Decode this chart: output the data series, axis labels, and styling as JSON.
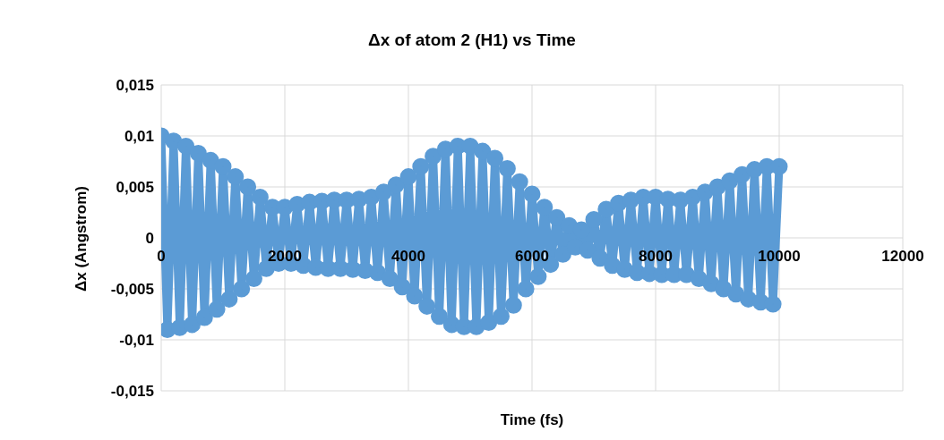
{
  "chart_data": {
    "type": "line",
    "title": "Δx of atom 2 (H1) vs Time",
    "xlabel": "Time (fs)",
    "ylabel": "Δx (Angstrom)",
    "marker": "circle",
    "grid": true,
    "x": [
      0,
      100,
      200,
      300,
      400,
      500,
      600,
      700,
      800,
      900,
      1000,
      1100,
      1200,
      1300,
      1400,
      1500,
      1600,
      1700,
      1800,
      1900,
      2000,
      2100,
      2200,
      2300,
      2400,
      2500,
      2600,
      2700,
      2800,
      2900,
      3000,
      3100,
      3200,
      3300,
      3400,
      3500,
      3600,
      3700,
      3800,
      3900,
      4000,
      4100,
      4200,
      4300,
      4400,
      4500,
      4600,
      4700,
      4800,
      4900,
      5000,
      5100,
      5200,
      5300,
      5400,
      5500,
      5600,
      5700,
      5800,
      5900,
      6000,
      6100,
      6200,
      6300,
      6400,
      6500,
      6600,
      6700,
      6800,
      6900,
      7000,
      7100,
      7200,
      7300,
      7400,
      7500,
      7600,
      7700,
      7800,
      7900,
      8000,
      8100,
      8200,
      8300,
      8400,
      8500,
      8600,
      8700,
      8800,
      8900,
      9000,
      9100,
      9200,
      9300,
      9400,
      9500,
      9600,
      9700,
      9800,
      9900,
      10000
    ],
    "series": [
      {
        "color": "#5b9bd5",
        "values": [
          0.01,
          -0.009,
          0.0095,
          -0.0088,
          0.009,
          -0.0085,
          0.0083,
          -0.0078,
          0.0076,
          -0.007,
          0.007,
          -0.006,
          0.006,
          -0.005,
          0.005,
          -0.004,
          0.004,
          -0.003,
          0.003,
          -0.0025,
          0.003,
          -0.0025,
          0.0033,
          -0.0027,
          0.0035,
          -0.0029,
          0.0036,
          -0.003,
          0.0037,
          -0.003,
          0.0037,
          -0.0031,
          0.0038,
          -0.0032,
          0.004,
          -0.0034,
          0.0045,
          -0.004,
          0.0052,
          -0.0048,
          0.006,
          -0.0057,
          0.007,
          -0.0067,
          0.008,
          -0.0077,
          0.0087,
          -0.0085,
          0.009,
          -0.0087,
          0.009,
          -0.0087,
          0.0085,
          -0.0083,
          0.0078,
          -0.0077,
          0.0068,
          -0.0066,
          0.0055,
          -0.005,
          0.0043,
          -0.0038,
          0.003,
          -0.0026,
          0.002,
          -0.0016,
          0.0012,
          -0.0009,
          0.0008,
          -0.0012,
          0.0018,
          -0.002,
          0.0028,
          -0.0027,
          0.0034,
          -0.0031,
          0.0037,
          -0.0034,
          0.004,
          -0.0035,
          0.004,
          -0.0036,
          0.0038,
          -0.0036,
          0.0037,
          -0.0036,
          0.004,
          -0.004,
          0.0045,
          -0.0045,
          0.005,
          -0.005,
          0.0056,
          -0.0055,
          0.0062,
          -0.006,
          0.0067,
          -0.0063,
          0.007,
          -0.0065,
          0.007
        ]
      }
    ],
    "xlim": [
      0,
      12000
    ],
    "xticks": [
      0,
      2000,
      4000,
      6000,
      8000,
      10000,
      12000
    ],
    "ylim": [
      -0.015,
      0.015
    ],
    "yticks": [
      {
        "value": -0.015,
        "label": "-0,015"
      },
      {
        "value": -0.01,
        "label": "-0,01"
      },
      {
        "value": -0.005,
        "label": "-0,005"
      },
      0,
      {
        "value": 0.005,
        "label": "0,005"
      },
      {
        "value": 0.01,
        "label": "0,01"
      },
      {
        "value": 0.015,
        "label": "0,015"
      }
    ]
  }
}
